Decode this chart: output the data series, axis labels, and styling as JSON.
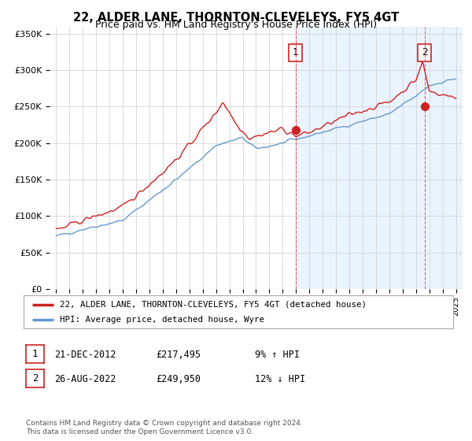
{
  "title": "22, ALDER LANE, THORNTON-CLEVELEYS, FY5 4GT",
  "subtitle": "Price paid vs. HM Land Registry's House Price Index (HPI)",
  "ylim": [
    0,
    360000
  ],
  "yticks": [
    0,
    50000,
    100000,
    150000,
    200000,
    250000,
    300000,
    350000
  ],
  "ytick_labels": [
    "£0",
    "£50K",
    "£100K",
    "£150K",
    "£200K",
    "£250K",
    "£300K",
    "£350K"
  ],
  "xlim_start": 1994.5,
  "xlim_end": 2025.5,
  "xtick_years": [
    1995,
    1996,
    1997,
    1998,
    1999,
    2000,
    2001,
    2002,
    2003,
    2004,
    2005,
    2006,
    2007,
    2008,
    2009,
    2010,
    2011,
    2012,
    2013,
    2014,
    2015,
    2016,
    2017,
    2018,
    2019,
    2020,
    2021,
    2022,
    2023,
    2024,
    2025
  ],
  "hpi_color": "#6699cc",
  "price_color": "#cc2222",
  "shade_color": "#ddeeff",
  "sale1_x": 2012.97,
  "sale1_y": 217495,
  "sale2_x": 2022.65,
  "sale2_y": 249950,
  "legend_line1": "22, ALDER LANE, THORNTON-CLEVELEYS, FY5 4GT (detached house)",
  "legend_line2": "HPI: Average price, detached house, Wyre",
  "table_row1": [
    "1",
    "21-DEC-2012",
    "£217,495",
    "9% ↑ HPI"
  ],
  "table_row2": [
    "2",
    "26-AUG-2022",
    "£249,950",
    "12% ↓ HPI"
  ],
  "footnote": "Contains HM Land Registry data © Crown copyright and database right 2024.\nThis data is licensed under the Open Government Licence v3.0.",
  "bg_color": "#ffffff",
  "plot_bg": "#ffffff"
}
